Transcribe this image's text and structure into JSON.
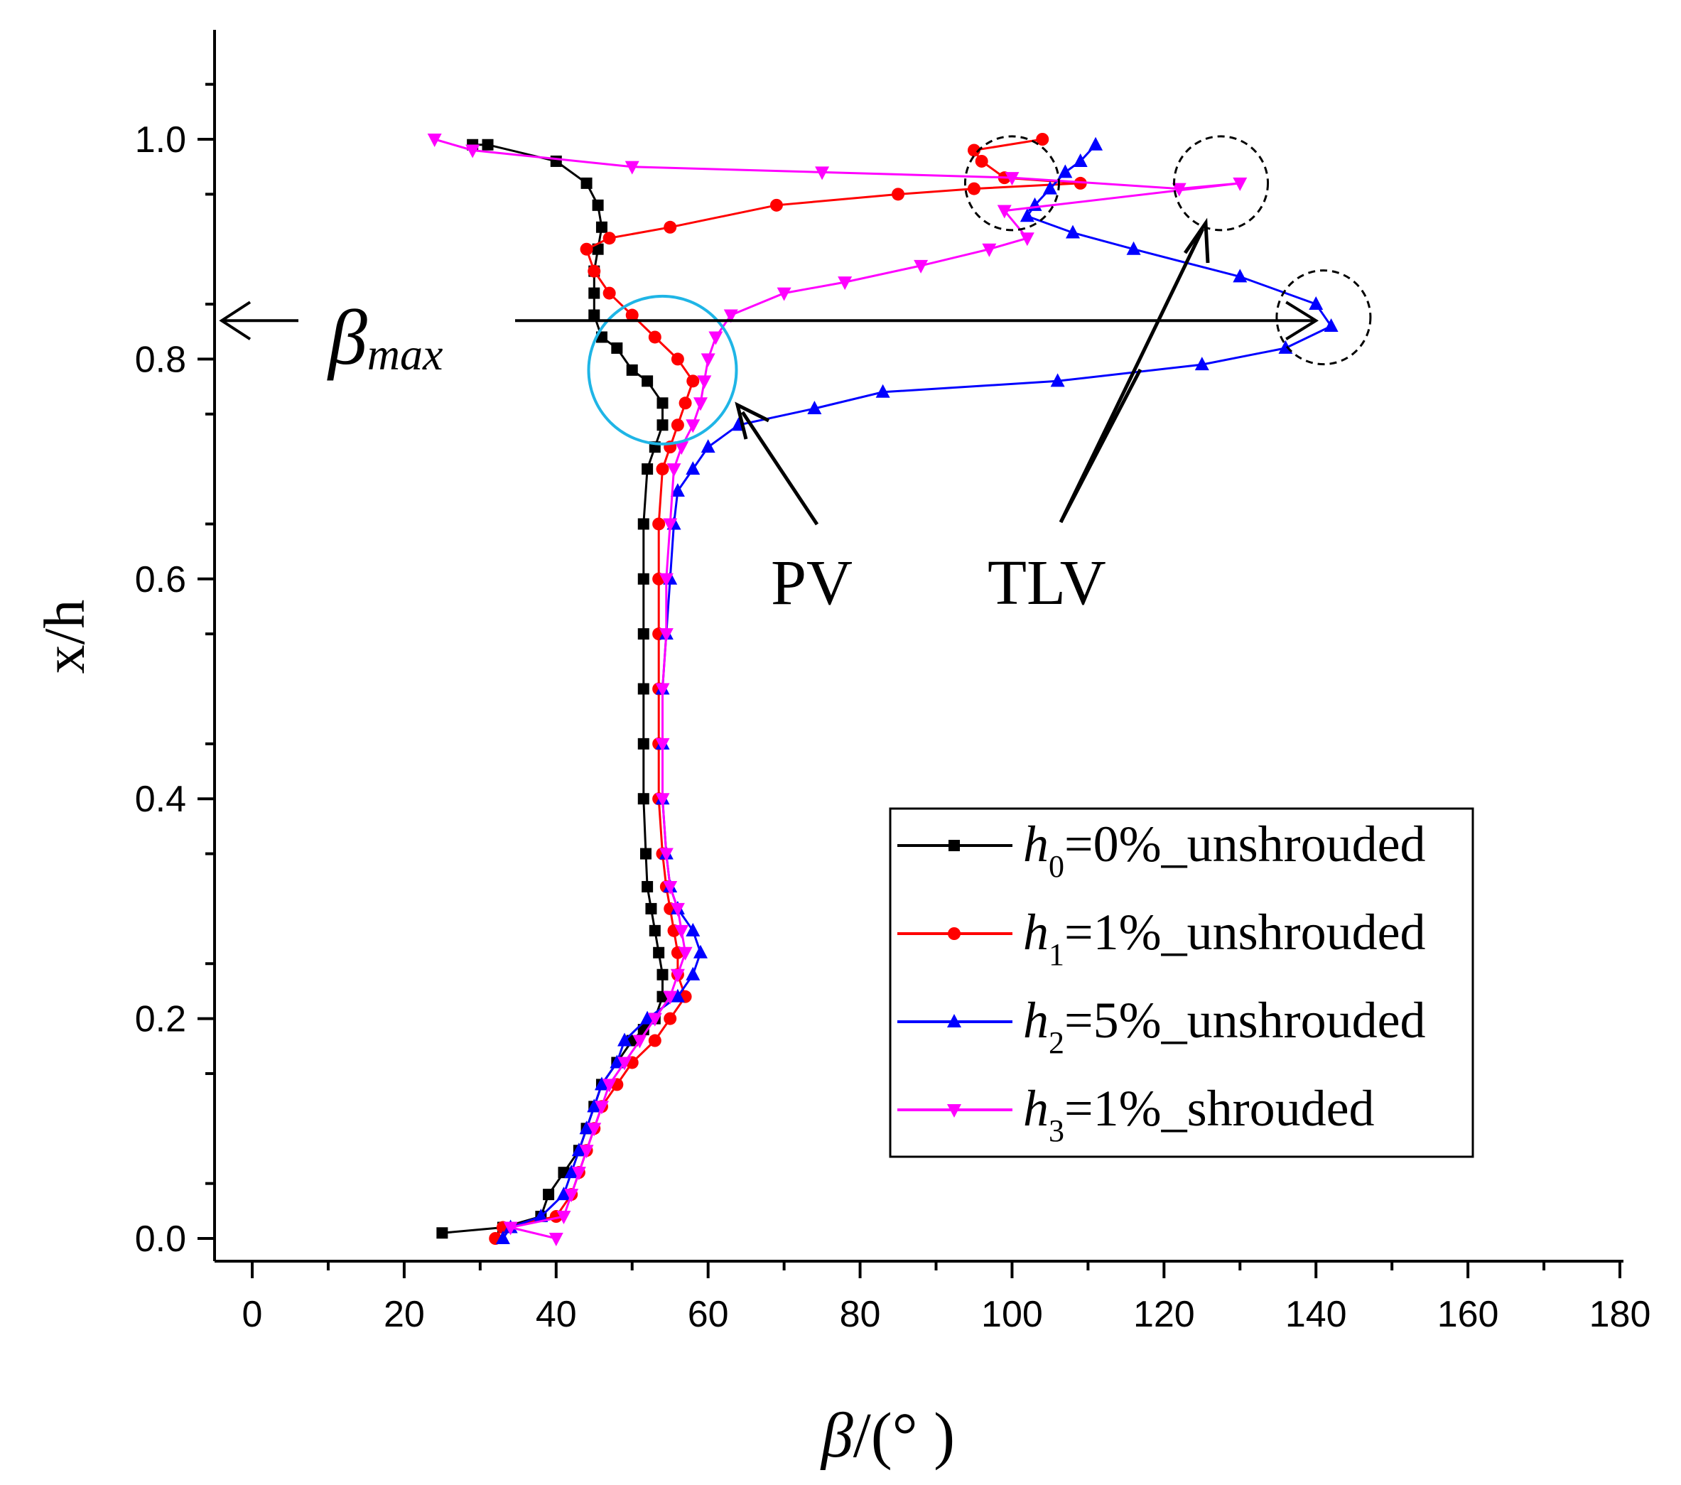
{
  "chart_data": {
    "type": "line",
    "title": "",
    "xlabel": "β/(°)",
    "xlabel_parts": {
      "symbol": "β",
      "rest": "/(°   )"
    },
    "ylabel": "x/h",
    "xlim": [
      -5,
      180
    ],
    "ylim": [
      -0.02,
      1.1
    ],
    "x_ticks": [
      0,
      20,
      40,
      60,
      80,
      100,
      120,
      140,
      160,
      180
    ],
    "y_ticks": [
      0.0,
      0.2,
      0.4,
      0.6,
      0.8,
      1.0
    ],
    "x_tick_labels": [
      "0",
      "20",
      "40",
      "60",
      "80",
      "100",
      "120",
      "140",
      "160",
      "180"
    ],
    "y_tick_labels": [
      "0.0",
      "0.2",
      "0.4",
      "0.6",
      "0.8",
      "1.0"
    ],
    "grid": false,
    "legend_position": "bottom-right",
    "series": [
      {
        "name": "h0=0%_unshrouded",
        "label_sub": "0",
        "label_rest": "=0%_unshrouded",
        "color": "#000000",
        "marker": "square",
        "points": [
          [
            25,
            0.005
          ],
          [
            33,
            0.01
          ],
          [
            38,
            0.02
          ],
          [
            39,
            0.04
          ],
          [
            41,
            0.06
          ],
          [
            43,
            0.08
          ],
          [
            44,
            0.1
          ],
          [
            45,
            0.12
          ],
          [
            46,
            0.14
          ],
          [
            48,
            0.16
          ],
          [
            50,
            0.18
          ],
          [
            51.5,
            0.19
          ],
          [
            53,
            0.2
          ],
          [
            54,
            0.22
          ],
          [
            54,
            0.24
          ],
          [
            53.5,
            0.26
          ],
          [
            53,
            0.28
          ],
          [
            52.5,
            0.3
          ],
          [
            52,
            0.32
          ],
          [
            51.8,
            0.35
          ],
          [
            51.5,
            0.4
          ],
          [
            51.5,
            0.45
          ],
          [
            51.5,
            0.5
          ],
          [
            51.5,
            0.55
          ],
          [
            51.5,
            0.6
          ],
          [
            51.5,
            0.65
          ],
          [
            52,
            0.7
          ],
          [
            53,
            0.72
          ],
          [
            54,
            0.74
          ],
          [
            54,
            0.76
          ],
          [
            52,
            0.78
          ],
          [
            50,
            0.79
          ],
          [
            48,
            0.81
          ],
          [
            46,
            0.82
          ],
          [
            45,
            0.84
          ],
          [
            45,
            0.86
          ],
          [
            45,
            0.88
          ],
          [
            45.5,
            0.9
          ],
          [
            46,
            0.92
          ],
          [
            45.5,
            0.94
          ],
          [
            44,
            0.96
          ],
          [
            40,
            0.98
          ],
          [
            31,
            0.995
          ],
          [
            29,
            0.995
          ]
        ]
      },
      {
        "name": "h1=1%_unshrouded",
        "label_sub": "1",
        "label_rest": "=1%_unshrouded",
        "color": "#ff0000",
        "marker": "circle",
        "points": [
          [
            32,
            0.0
          ],
          [
            33,
            0.01
          ],
          [
            40,
            0.02
          ],
          [
            42,
            0.04
          ],
          [
            43,
            0.06
          ],
          [
            44,
            0.08
          ],
          [
            45,
            0.1
          ],
          [
            46,
            0.12
          ],
          [
            48,
            0.14
          ],
          [
            50,
            0.16
          ],
          [
            53,
            0.18
          ],
          [
            55,
            0.2
          ],
          [
            57,
            0.22
          ],
          [
            56,
            0.24
          ],
          [
            56,
            0.26
          ],
          [
            55.5,
            0.28
          ],
          [
            55,
            0.3
          ],
          [
            54.5,
            0.32
          ],
          [
            54,
            0.35
          ],
          [
            53.5,
            0.4
          ],
          [
            53.5,
            0.45
          ],
          [
            53.5,
            0.5
          ],
          [
            53.5,
            0.55
          ],
          [
            53.5,
            0.6
          ],
          [
            53.5,
            0.65
          ],
          [
            54,
            0.7
          ],
          [
            55,
            0.72
          ],
          [
            56,
            0.74
          ],
          [
            57,
            0.76
          ],
          [
            58,
            0.78
          ],
          [
            56,
            0.8
          ],
          [
            53,
            0.82
          ],
          [
            50,
            0.84
          ],
          [
            47,
            0.86
          ],
          [
            45,
            0.88
          ],
          [
            44,
            0.9
          ],
          [
            47,
            0.91
          ],
          [
            55,
            0.92
          ],
          [
            69,
            0.94
          ],
          [
            85,
            0.95
          ],
          [
            95,
            0.955
          ],
          [
            109,
            0.96
          ],
          [
            99,
            0.965
          ],
          [
            96,
            0.98
          ],
          [
            95,
            0.99
          ],
          [
            104,
            1.0
          ]
        ]
      },
      {
        "name": "h2=5%_unshrouded",
        "label_sub": "2",
        "label_rest": "=5%_unshrouded",
        "color": "#0000ff",
        "marker": "triangle-up",
        "points": [
          [
            33,
            0.0
          ],
          [
            34,
            0.01
          ],
          [
            38,
            0.02
          ],
          [
            41,
            0.04
          ],
          [
            42,
            0.06
          ],
          [
            43,
            0.08
          ],
          [
            44,
            0.1
          ],
          [
            45,
            0.12
          ],
          [
            46,
            0.14
          ],
          [
            48,
            0.16
          ],
          [
            49,
            0.18
          ],
          [
            52,
            0.2
          ],
          [
            56,
            0.22
          ],
          [
            58,
            0.24
          ],
          [
            59,
            0.26
          ],
          [
            58,
            0.28
          ],
          [
            56,
            0.3
          ],
          [
            55,
            0.32
          ],
          [
            54.5,
            0.35
          ],
          [
            54,
            0.4
          ],
          [
            54,
            0.45
          ],
          [
            54,
            0.5
          ],
          [
            54.5,
            0.55
          ],
          [
            55,
            0.6
          ],
          [
            55.5,
            0.65
          ],
          [
            56,
            0.68
          ],
          [
            58,
            0.7
          ],
          [
            60,
            0.72
          ],
          [
            64,
            0.74
          ],
          [
            74,
            0.755
          ],
          [
            83,
            0.77
          ],
          [
            106,
            0.78
          ],
          [
            125,
            0.795
          ],
          [
            136,
            0.81
          ],
          [
            142,
            0.83
          ],
          [
            140,
            0.85
          ],
          [
            130,
            0.875
          ],
          [
            116,
            0.9
          ],
          [
            108,
            0.915
          ],
          [
            102,
            0.93
          ],
          [
            103,
            0.94
          ],
          [
            105,
            0.955
          ],
          [
            107,
            0.97
          ],
          [
            109,
            0.98
          ],
          [
            111,
            0.995
          ]
        ]
      },
      {
        "name": "h3=1%_shrouded",
        "label_sub": "3",
        "label_rest": "=1%_shrouded",
        "color": "#ff00ff",
        "marker": "triangle-down",
        "points": [
          [
            40,
            0.0
          ],
          [
            34,
            0.01
          ],
          [
            41,
            0.02
          ],
          [
            42,
            0.04
          ],
          [
            43,
            0.06
          ],
          [
            44,
            0.08
          ],
          [
            45,
            0.1
          ],
          [
            46,
            0.12
          ],
          [
            47,
            0.14
          ],
          [
            49,
            0.16
          ],
          [
            51,
            0.18
          ],
          [
            53,
            0.2
          ],
          [
            55,
            0.22
          ],
          [
            56,
            0.24
          ],
          [
            57,
            0.26
          ],
          [
            56.5,
            0.28
          ],
          [
            56,
            0.3
          ],
          [
            55,
            0.32
          ],
          [
            54.5,
            0.35
          ],
          [
            54,
            0.4
          ],
          [
            54,
            0.45
          ],
          [
            54,
            0.5
          ],
          [
            54.5,
            0.55
          ],
          [
            54.5,
            0.6
          ],
          [
            55,
            0.65
          ],
          [
            55.5,
            0.7
          ],
          [
            56.5,
            0.72
          ],
          [
            58,
            0.74
          ],
          [
            59,
            0.76
          ],
          [
            59.5,
            0.78
          ],
          [
            60,
            0.8
          ],
          [
            61,
            0.82
          ],
          [
            63,
            0.84
          ],
          [
            70,
            0.86
          ],
          [
            78,
            0.87
          ],
          [
            88,
            0.885
          ],
          [
            97,
            0.9
          ],
          [
            102,
            0.91
          ],
          [
            99,
            0.935
          ],
          [
            130,
            0.96
          ],
          [
            122,
            0.955
          ],
          [
            100,
            0.965
          ],
          [
            75,
            0.97
          ],
          [
            50,
            0.975
          ],
          [
            29,
            0.99
          ],
          [
            24,
            1.0
          ]
        ]
      }
    ],
    "annotations": {
      "beta_max_symbol": "β",
      "beta_max_sub": "max",
      "beta_max_y": 0.835,
      "beta_max_x_end": 140,
      "pv_label": "PV",
      "tlv_label": "TLV",
      "pv_circle": {
        "x": 54,
        "y": 0.79,
        "color": "#1fb5e6"
      },
      "tlv_circles": [
        {
          "x": 100,
          "y": 0.96
        },
        {
          "x": 127.5,
          "y": 0.96
        },
        {
          "x": 141,
          "y": 0.838
        }
      ]
    }
  }
}
